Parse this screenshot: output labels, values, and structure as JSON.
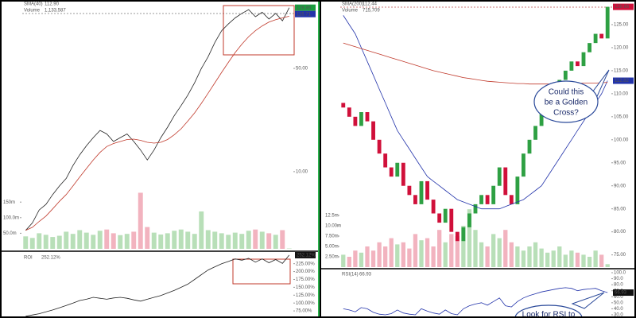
{
  "chart_data": [
    {
      "type": "line",
      "log_scale": true,
      "legend": [
        "SMA(40)"
      ],
      "series": [
        {
          "name": "SMA(40)",
          "color": "#c0392b",
          "value_label": "112.90",
          "values": [
            4,
            4.2,
            4.6,
            5,
            5.6,
            6.3,
            7,
            8,
            9.2,
            10.5,
            12,
            13.5,
            14.8,
            15.5,
            16,
            16.5,
            16.6,
            16.3,
            15.8,
            15.6,
            15.8,
            16.5,
            17.8,
            19.5,
            22,
            25,
            29,
            34,
            40,
            47,
            55,
            64,
            73,
            82,
            90,
            97,
            103,
            107,
            110,
            112.9
          ]
        }
      ],
      "color": "#222222",
      "values": [
        4,
        4.5,
        5.5,
        6,
        7,
        8,
        9,
        11,
        13,
        15,
        17,
        19,
        18,
        16,
        17,
        18,
        16,
        14,
        12,
        14,
        17,
        20,
        24,
        28,
        33,
        40,
        50,
        60,
        75,
        90,
        100,
        110,
        118,
        125,
        112,
        120,
        108,
        118,
        105,
        128.86
      ],
      "ylim": [
        3,
        140
      ],
      "yticks": [
        {
          "value": 10,
          "label": "10.00"
        },
        {
          "value": 50,
          "label": "50.00"
        }
      ],
      "badges": [
        {
          "value": 128.86,
          "color": "#1a9c3e"
        },
        {
          "value": 116.71,
          "color": "#2233aa"
        }
      ],
      "volume": {
        "name": "Volume",
        "value_label": "1,133,587",
        "ylim": [
          0,
          250
        ],
        "yticks": [
          {
            "value": 50,
            "label": "50.0m"
          },
          {
            "value": 100,
            "label": "100.0m"
          },
          {
            "value": 150,
            "label": "150m"
          }
        ],
        "values": [
          40,
          35,
          50,
          45,
          38,
          42,
          55,
          48,
          60,
          52,
          45,
          58,
          62,
          50,
          44,
          48,
          55,
          180,
          70,
          52,
          46,
          50,
          58,
          62,
          55,
          48,
          120,
          60,
          55,
          50,
          45,
          52,
          48,
          58,
          62,
          55,
          50,
          45,
          60,
          1.133587
        ]
      },
      "indicator": {
        "name": "ROI",
        "value_label": "252.12%",
        "color": "#222222",
        "ylim": [
          55,
          257
        ],
        "yticks": [
          {
            "value": 75,
            "label": "75.00%"
          },
          {
            "value": 100,
            "label": "100.00%"
          },
          {
            "value": 125,
            "label": "125.00%"
          },
          {
            "value": 150,
            "label": "150.00%"
          },
          {
            "value": 175,
            "label": "175.00%"
          },
          {
            "value": 200,
            "label": "200.00%"
          },
          {
            "value": 225,
            "label": "225.00%"
          }
        ],
        "values": [
          58,
          62,
          66,
          72,
          78,
          85,
          92,
          100,
          108,
          112,
          118,
          115,
          112,
          116,
          118,
          115,
          110,
          106,
          112,
          118,
          124,
          132,
          140,
          150,
          160,
          175,
          190,
          205,
          215,
          225,
          232,
          240,
          236,
          242,
          230,
          240,
          228,
          238,
          226,
          252.12
        ]
      }
    },
    {
      "type": "candlestick",
      "log_scale": false,
      "series": [
        {
          "name": "SMA(200)",
          "color": "#c0392b",
          "value_label": "112.44",
          "values": [
            121,
            120.6,
            120.2,
            119.8,
            119.4,
            119,
            118.6,
            118.2,
            117.8,
            117.4,
            117,
            116.6,
            116.2,
            115.8,
            115.4,
            115,
            114.7,
            114.4,
            114.1,
            113.8,
            113.5,
            113.3,
            113.1,
            112.9,
            112.7,
            112.6,
            112.5,
            112.4,
            112.3,
            112.2,
            112.2,
            112.1,
            112.1,
            112.1,
            112.1,
            112.1,
            112.1,
            112.2,
            112.2,
            112.2,
            112.3,
            112.3,
            112.3,
            112.4,
            112.44
          ]
        }
      ],
      "lines": [
        {
          "color": "#2233aa",
          "values": [
            127,
            125,
            123,
            120,
            117,
            114,
            111,
            108,
            105,
            102,
            100,
            98,
            96,
            94,
            92,
            91,
            90,
            89,
            88,
            87,
            86.5,
            86,
            85.5,
            85,
            85,
            85,
            85,
            85.5,
            86,
            86.5,
            87,
            88,
            89,
            90,
            92,
            94,
            96,
            98,
            100,
            102,
            104,
            106,
            108,
            110,
            112.82
          ]
        }
      ],
      "open": [
        108,
        107,
        105,
        103,
        106,
        104,
        100,
        97,
        94,
        92,
        95,
        90,
        88,
        86,
        91,
        87,
        84,
        82,
        85,
        80,
        78,
        81,
        84,
        86,
        88,
        86,
        90,
        94,
        88,
        86,
        92,
        97,
        100,
        103,
        106,
        108,
        110,
        113,
        115,
        117,
        116,
        119,
        121,
        123,
        122
      ],
      "values": [
        107,
        105,
        103,
        106,
        104,
        100,
        97,
        94,
        92,
        95,
        90,
        88,
        86,
        91,
        87,
        84,
        82,
        85,
        80,
        78,
        81,
        84,
        86,
        88,
        86,
        90,
        94,
        88,
        86,
        92,
        97,
        100,
        103,
        106,
        108,
        110,
        113,
        115,
        117,
        116,
        119,
        121,
        123,
        122,
        128.86
      ],
      "ylim": [
        72,
        130
      ],
      "yticks": [
        {
          "value": 75,
          "label": "75.00"
        },
        {
          "value": 80,
          "label": "80.00"
        },
        {
          "value": 85,
          "label": "85.00"
        },
        {
          "value": 90,
          "label": "90.00"
        },
        {
          "value": 95,
          "label": "95.00"
        },
        {
          "value": 100,
          "label": "100.00"
        },
        {
          "value": 105,
          "label": "105.00"
        },
        {
          "value": 110,
          "label": "110.00"
        },
        {
          "value": 115,
          "label": "115.00"
        },
        {
          "value": 120,
          "label": "120.00"
        },
        {
          "value": 125,
          "label": "125.00"
        }
      ],
      "badges": [
        {
          "value": 128.86,
          "color": "#d0103a"
        },
        {
          "value": 112.82,
          "color": "#2233aa"
        }
      ],
      "volume": {
        "name": "Volume",
        "value_label": "715,709",
        "ylim": [
          0,
          15
        ],
        "yticks": [
          {
            "value": 2.5,
            "label": "2.50m"
          },
          {
            "value": 5,
            "label": "5.00m"
          },
          {
            "value": 7.5,
            "label": "7.50m"
          },
          {
            "value": 10,
            "label": "10.00m"
          },
          {
            "value": 12.5,
            "label": "12.5m"
          }
        ],
        "values": [
          3,
          2.5,
          4,
          3.5,
          5,
          4,
          6,
          5,
          7,
          5.5,
          6,
          4.5,
          8,
          6.5,
          7,
          5,
          9,
          6,
          8,
          7.5,
          10,
          14,
          9,
          6,
          5,
          8,
          7,
          9,
          6,
          5,
          4,
          5,
          6,
          4.5,
          3.5,
          4,
          5,
          3,
          4,
          3.5,
          3,
          2.5,
          4,
          3,
          0.715709
        ]
      },
      "indicator": {
        "name": "RSI(14)",
        "value_label": "66.93",
        "color": "#2233aa",
        "ylim": [
          26,
          104
        ],
        "yticks": [
          {
            "value": 30,
            "label": "30.0"
          },
          {
            "value": 40,
            "label": "40.0"
          },
          {
            "value": 50,
            "label": "50.0"
          },
          {
            "value": 60,
            "label": "60.0"
          },
          {
            "value": 70,
            "label": "70.0"
          },
          {
            "value": 80,
            "label": "80.0"
          },
          {
            "value": 90,
            "label": "90.0"
          },
          {
            "value": 100,
            "label": "100.0"
          }
        ],
        "values": [
          40,
          38,
          35,
          42,
          40,
          34,
          31,
          30,
          32,
          38,
          33,
          31,
          30,
          40,
          36,
          33,
          31,
          38,
          32,
          30,
          40,
          45,
          48,
          50,
          46,
          52,
          58,
          45,
          43,
          52,
          58,
          62,
          65,
          68,
          70,
          72,
          74,
          75,
          74,
          70,
          72,
          73,
          74,
          70,
          66.93
        ]
      },
      "annotations": [
        [
          "Could this",
          "be a Golden",
          "Cross?"
        ],
        [
          "Look for RSI to"
        ]
      ]
    }
  ]
}
